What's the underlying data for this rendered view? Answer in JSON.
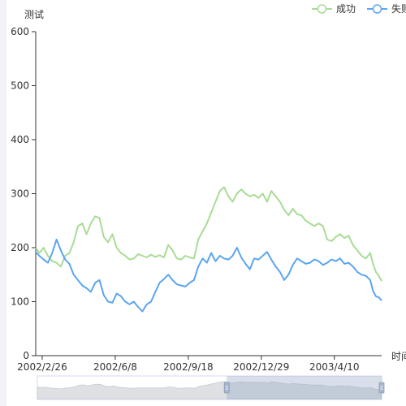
{
  "chart_data": {
    "type": "line",
    "title": "",
    "ylabel": "测试",
    "xlabel": "时间",
    "ylim": [
      0,
      600
    ],
    "yticks": [
      0,
      100,
      200,
      300,
      400,
      500,
      600
    ],
    "xtick_labels": [
      "2002/2/26",
      "2002/6/8",
      "2002/9/18",
      "2002/12/29",
      "2003/4/10"
    ],
    "x_range": [
      "2002/2/17",
      "2003/6/15"
    ],
    "legend_position": "top-right",
    "grid": false,
    "dataZoom": {
      "start": 0.0,
      "end": 1.0,
      "window_start": 0.55,
      "window_end": 1.0
    },
    "series": [
      {
        "name": "成功",
        "color": "#a8dc95",
        "points": [
          [
            "2002/2/17",
            200
          ],
          [
            "2002/2/22",
            190
          ],
          [
            "2002/2/28",
            200
          ],
          [
            "2002/3/6",
            185
          ],
          [
            "2002/3/12",
            175
          ],
          [
            "2002/3/18",
            172
          ],
          [
            "2002/3/24",
            165
          ],
          [
            "2002/3/30",
            185
          ],
          [
            "2002/4/5",
            190
          ],
          [
            "2002/4/11",
            210
          ],
          [
            "2002/4/17",
            240
          ],
          [
            "2002/4/23",
            245
          ],
          [
            "2002/4/29",
            225
          ],
          [
            "2002/5/5",
            245
          ],
          [
            "2002/5/11",
            258
          ],
          [
            "2002/5/17",
            255
          ],
          [
            "2002/5/23",
            220
          ],
          [
            "2002/5/29",
            210
          ],
          [
            "2002/6/4",
            225
          ],
          [
            "2002/6/10",
            200
          ],
          [
            "2002/6/16",
            190
          ],
          [
            "2002/6/22",
            185
          ],
          [
            "2002/6/28",
            178
          ],
          [
            "2002/7/4",
            180
          ],
          [
            "2002/7/10",
            188
          ],
          [
            "2002/7/16",
            185
          ],
          [
            "2002/7/22",
            182
          ],
          [
            "2002/7/28",
            187
          ],
          [
            "2002/8/3",
            183
          ],
          [
            "2002/8/9",
            186
          ],
          [
            "2002/8/15",
            182
          ],
          [
            "2002/8/21",
            205
          ],
          [
            "2002/8/27",
            195
          ],
          [
            "2002/9/2",
            180
          ],
          [
            "2002/9/8",
            178
          ],
          [
            "2002/9/14",
            185
          ],
          [
            "2002/9/20",
            182
          ],
          [
            "2002/9/26",
            180
          ],
          [
            "2002/10/2",
            215
          ],
          [
            "2002/10/8",
            230
          ],
          [
            "2002/10/14",
            245
          ],
          [
            "2002/10/20",
            265
          ],
          [
            "2002/10/26",
            285
          ],
          [
            "2002/11/1",
            305
          ],
          [
            "2002/11/7",
            312
          ],
          [
            "2002/11/13",
            295
          ],
          [
            "2002/11/19",
            285
          ],
          [
            "2002/11/25",
            300
          ],
          [
            "2002/12/1",
            308
          ],
          [
            "2002/12/7",
            300
          ],
          [
            "2002/12/13",
            295
          ],
          [
            "2002/12/19",
            298
          ],
          [
            "2002/12/25",
            292
          ],
          [
            "2002/12/31",
            300
          ],
          [
            "2003/1/6",
            285
          ],
          [
            "2003/1/12",
            305
          ],
          [
            "2003/1/18",
            295
          ],
          [
            "2003/1/24",
            285
          ],
          [
            "2003/1/30",
            270
          ],
          [
            "2003/2/5",
            260
          ],
          [
            "2003/2/11",
            272
          ],
          [
            "2003/2/17",
            262
          ],
          [
            "2003/2/23",
            260
          ],
          [
            "2003/3/1",
            250
          ],
          [
            "2003/3/7",
            245
          ],
          [
            "2003/3/13",
            240
          ],
          [
            "2003/3/19",
            245
          ],
          [
            "2003/3/25",
            240
          ],
          [
            "2003/3/31",
            215
          ],
          [
            "2003/4/6",
            212
          ],
          [
            "2003/4/12",
            220
          ],
          [
            "2003/4/18",
            225
          ],
          [
            "2003/4/24",
            218
          ],
          [
            "2003/4/30",
            222
          ],
          [
            "2003/5/6",
            205
          ],
          [
            "2003/5/12",
            195
          ],
          [
            "2003/5/18",
            185
          ],
          [
            "2003/5/24",
            180
          ],
          [
            "2003/5/30",
            190
          ],
          [
            "2003/6/3",
            170
          ],
          [
            "2003/6/7",
            155
          ],
          [
            "2003/6/11",
            148
          ],
          [
            "2003/6/15",
            138
          ]
        ]
      },
      {
        "name": "失败",
        "color": "#5ba5f0",
        "points": [
          [
            "2002/2/17",
            192
          ],
          [
            "2002/2/22",
            185
          ],
          [
            "2002/2/28",
            178
          ],
          [
            "2002/3/6",
            172
          ],
          [
            "2002/3/12",
            190
          ],
          [
            "2002/3/18",
            215
          ],
          [
            "2002/3/24",
            195
          ],
          [
            "2002/3/30",
            178
          ],
          [
            "2002/4/5",
            170
          ],
          [
            "2002/4/11",
            150
          ],
          [
            "2002/4/17",
            140
          ],
          [
            "2002/4/23",
            130
          ],
          [
            "2002/4/29",
            125
          ],
          [
            "2002/5/5",
            118
          ],
          [
            "2002/5/11",
            135
          ],
          [
            "2002/5/17",
            140
          ],
          [
            "2002/5/23",
            112
          ],
          [
            "2002/5/29",
            100
          ],
          [
            "2002/6/4",
            98
          ],
          [
            "2002/6/10",
            115
          ],
          [
            "2002/6/16",
            110
          ],
          [
            "2002/6/22",
            100
          ],
          [
            "2002/6/28",
            95
          ],
          [
            "2002/7/4",
            100
          ],
          [
            "2002/7/10",
            90
          ],
          [
            "2002/7/16",
            82
          ],
          [
            "2002/7/22",
            95
          ],
          [
            "2002/7/28",
            100
          ],
          [
            "2002/8/3",
            118
          ],
          [
            "2002/8/9",
            135
          ],
          [
            "2002/8/15",
            142
          ],
          [
            "2002/8/21",
            150
          ],
          [
            "2002/8/27",
            140
          ],
          [
            "2002/9/2",
            132
          ],
          [
            "2002/9/8",
            130
          ],
          [
            "2002/9/14",
            128
          ],
          [
            "2002/9/20",
            135
          ],
          [
            "2002/9/26",
            140
          ],
          [
            "2002/10/2",
            165
          ],
          [
            "2002/10/8",
            180
          ],
          [
            "2002/10/14",
            172
          ],
          [
            "2002/10/20",
            190
          ],
          [
            "2002/10/26",
            175
          ],
          [
            "2002/11/1",
            185
          ],
          [
            "2002/11/7",
            180
          ],
          [
            "2002/11/13",
            178
          ],
          [
            "2002/11/19",
            185
          ],
          [
            "2002/11/25",
            200
          ],
          [
            "2002/12/1",
            182
          ],
          [
            "2002/12/7",
            170
          ],
          [
            "2002/12/13",
            160
          ],
          [
            "2002/12/19",
            180
          ],
          [
            "2002/12/25",
            178
          ],
          [
            "2002/12/31",
            185
          ],
          [
            "2003/1/6",
            192
          ],
          [
            "2003/1/12",
            178
          ],
          [
            "2003/1/18",
            165
          ],
          [
            "2003/1/24",
            155
          ],
          [
            "2003/1/30",
            140
          ],
          [
            "2003/2/5",
            150
          ],
          [
            "2003/2/11",
            168
          ],
          [
            "2003/2/17",
            180
          ],
          [
            "2003/2/23",
            175
          ],
          [
            "2003/3/1",
            170
          ],
          [
            "2003/3/7",
            172
          ],
          [
            "2003/3/13",
            178
          ],
          [
            "2003/3/19",
            175
          ],
          [
            "2003/3/25",
            168
          ],
          [
            "2003/3/31",
            172
          ],
          [
            "2003/4/6",
            178
          ],
          [
            "2003/4/12",
            175
          ],
          [
            "2003/4/18",
            180
          ],
          [
            "2003/4/24",
            170
          ],
          [
            "2003/4/30",
            172
          ],
          [
            "2003/5/6",
            165
          ],
          [
            "2003/5/12",
            155
          ],
          [
            "2003/5/18",
            150
          ],
          [
            "2003/5/24",
            148
          ],
          [
            "2003/5/30",
            140
          ],
          [
            "2003/6/3",
            120
          ],
          [
            "2003/6/7",
            110
          ],
          [
            "2003/6/11",
            108
          ],
          [
            "2003/6/15",
            102
          ]
        ]
      }
    ]
  }
}
